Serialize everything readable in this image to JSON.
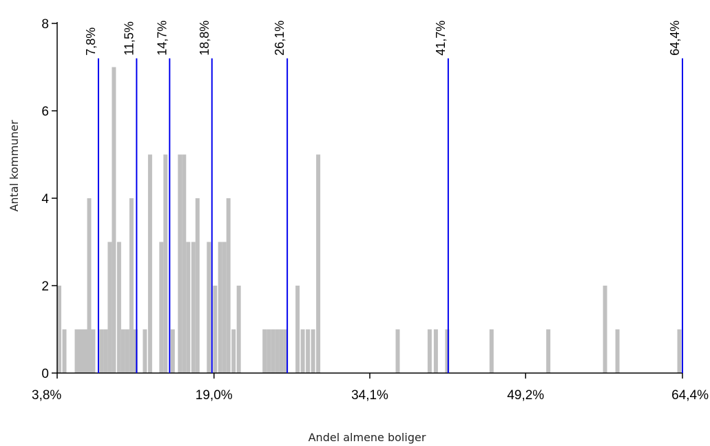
{
  "chart_data": {
    "type": "bar",
    "xlabel": "Andel almene boliger",
    "ylabel": "Antal kommuner",
    "xlim": [
      3.8,
      64.4
    ],
    "ylim": [
      0,
      8
    ],
    "x_ticks": [
      {
        "value": 3.8,
        "label": "3,8%"
      },
      {
        "value": 19.0,
        "label": "19,0%"
      },
      {
        "value": 34.1,
        "label": "34,1%"
      },
      {
        "value": 49.2,
        "label": "49,2%"
      },
      {
        "value": 64.4,
        "label": "64,4%"
      }
    ],
    "y_ticks": [
      {
        "value": 0,
        "label": "0"
      },
      {
        "value": 2,
        "label": "2"
      },
      {
        "value": 4,
        "label": "4"
      },
      {
        "value": 6,
        "label": "6"
      },
      {
        "value": 8,
        "label": "8"
      }
    ],
    "bin_width": 0.4,
    "bars": [
      {
        "x": 3.8,
        "count": 2
      },
      {
        "x": 4.3,
        "count": 1
      },
      {
        "x": 5.5,
        "count": 1
      },
      {
        "x": 5.9,
        "count": 1
      },
      {
        "x": 6.3,
        "count": 1
      },
      {
        "x": 6.7,
        "count": 4
      },
      {
        "x": 7.1,
        "count": 1
      },
      {
        "x": 7.9,
        "count": 1
      },
      {
        "x": 8.3,
        "count": 1
      },
      {
        "x": 8.7,
        "count": 3
      },
      {
        "x": 9.1,
        "count": 7
      },
      {
        "x": 9.6,
        "count": 3
      },
      {
        "x": 10.0,
        "count": 1
      },
      {
        "x": 10.4,
        "count": 1
      },
      {
        "x": 10.8,
        "count": 4
      },
      {
        "x": 11.2,
        "count": 1
      },
      {
        "x": 12.1,
        "count": 1
      },
      {
        "x": 12.6,
        "count": 5
      },
      {
        "x": 13.7,
        "count": 3
      },
      {
        "x": 14.1,
        "count": 5
      },
      {
        "x": 14.8,
        "count": 1
      },
      {
        "x": 15.5,
        "count": 5
      },
      {
        "x": 15.9,
        "count": 5
      },
      {
        "x": 16.3,
        "count": 3
      },
      {
        "x": 16.8,
        "count": 3
      },
      {
        "x": 17.2,
        "count": 4
      },
      {
        "x": 18.3,
        "count": 3
      },
      {
        "x": 18.9,
        "count": 2
      },
      {
        "x": 19.4,
        "count": 3
      },
      {
        "x": 19.8,
        "count": 3
      },
      {
        "x": 20.2,
        "count": 4
      },
      {
        "x": 20.7,
        "count": 1
      },
      {
        "x": 21.2,
        "count": 2
      },
      {
        "x": 23.7,
        "count": 1
      },
      {
        "x": 24.1,
        "count": 1
      },
      {
        "x": 24.5,
        "count": 1
      },
      {
        "x": 24.9,
        "count": 1
      },
      {
        "x": 25.3,
        "count": 1
      },
      {
        "x": 25.7,
        "count": 1
      },
      {
        "x": 26.9,
        "count": 2
      },
      {
        "x": 27.4,
        "count": 1
      },
      {
        "x": 27.9,
        "count": 1
      },
      {
        "x": 28.4,
        "count": 1
      },
      {
        "x": 28.9,
        "count": 5
      },
      {
        "x": 36.6,
        "count": 1
      },
      {
        "x": 39.7,
        "count": 1
      },
      {
        "x": 40.3,
        "count": 1
      },
      {
        "x": 41.4,
        "count": 1
      },
      {
        "x": 45.7,
        "count": 1
      },
      {
        "x": 51.2,
        "count": 1
      },
      {
        "x": 56.7,
        "count": 2
      },
      {
        "x": 57.9,
        "count": 1
      },
      {
        "x": 63.9,
        "count": 1
      }
    ],
    "reference_lines": [
      {
        "value": 7.8,
        "label": "7,8%"
      },
      {
        "value": 11.5,
        "label": "11,5%"
      },
      {
        "value": 14.7,
        "label": "14,7%"
      },
      {
        "value": 18.8,
        "label": "18,8%"
      },
      {
        "value": 26.1,
        "label": "26,1%"
      },
      {
        "value": 41.7,
        "label": "41,7%"
      },
      {
        "value": 64.4,
        "label": "64,4%"
      }
    ],
    "reference_line_top": 7.2,
    "colors": {
      "bars": "#c0c0c0",
      "reference_lines": "#0000ee",
      "axis": "#000000"
    }
  }
}
